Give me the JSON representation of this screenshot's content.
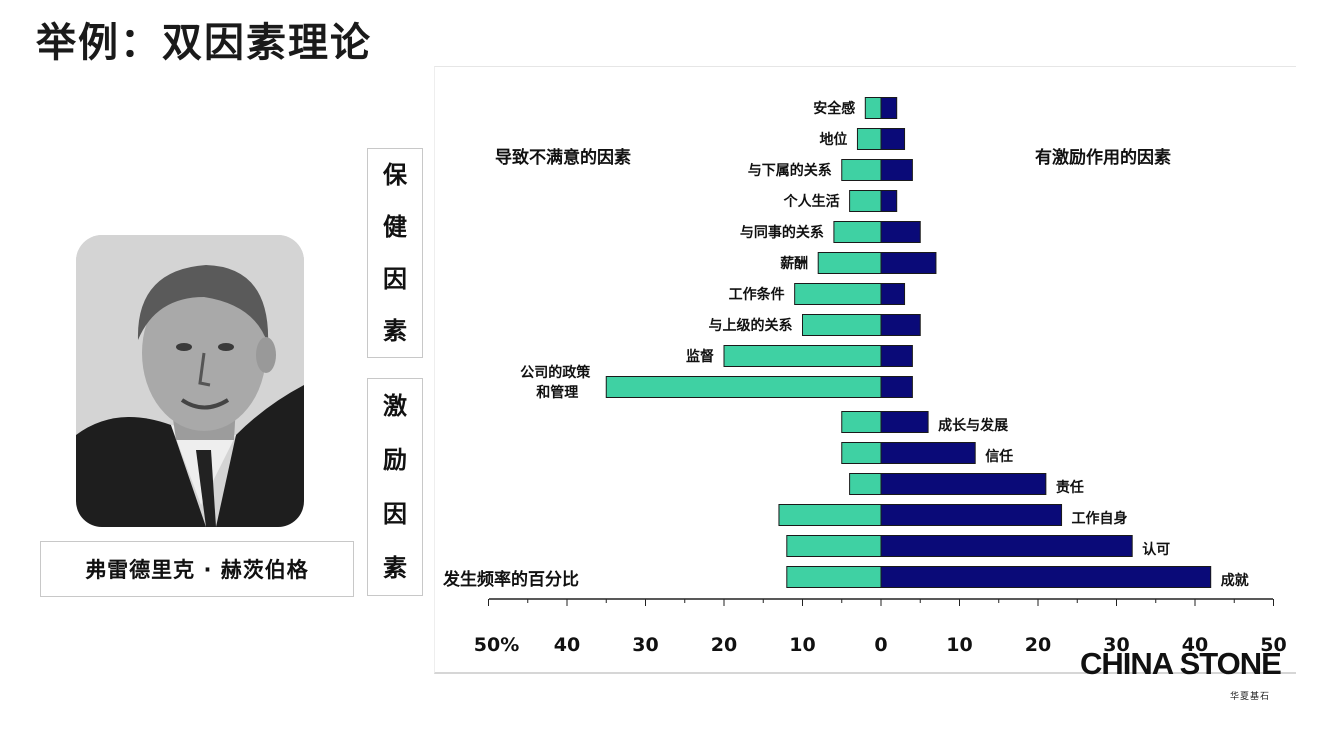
{
  "slide": {
    "title": "举例：双因素理论",
    "person_name": "弗雷德里克 · 赫茨伯格",
    "hygiene_box": [
      "保",
      "健",
      "因",
      "素"
    ],
    "motivator_box": [
      "激",
      "励",
      "因",
      "素"
    ],
    "logo_text": "CHINA STONE",
    "logo_sub": "华夏基石"
  },
  "chart_data": {
    "type": "bar",
    "orientation": "horizontal-diverging",
    "left_header": "导致不满意的因素",
    "right_header": "有激励作用的因素",
    "xlabel": "发生频率的百分比",
    "x_ticks_left": [
      "50%",
      "40",
      "30",
      "20",
      "10"
    ],
    "x_ticks_right": [
      "0",
      "10",
      "20",
      "30",
      "40",
      "50"
    ],
    "xlim": [
      -50,
      50
    ],
    "colors": {
      "dissatisfier": "#3fd1a3",
      "motivator": "#0a0a78"
    },
    "factors": [
      {
        "label": "安全感",
        "group": "hygiene",
        "dissatisfier": 2,
        "motivator": 2
      },
      {
        "label": "地位",
        "group": "hygiene",
        "dissatisfier": 3,
        "motivator": 3
      },
      {
        "label": "与下属的关系",
        "group": "hygiene",
        "dissatisfier": 5,
        "motivator": 4
      },
      {
        "label": "个人生活",
        "group": "hygiene",
        "dissatisfier": 4,
        "motivator": 2
      },
      {
        "label": "与同事的关系",
        "group": "hygiene",
        "dissatisfier": 6,
        "motivator": 5
      },
      {
        "label": "薪酬",
        "group": "hygiene",
        "dissatisfier": 8,
        "motivator": 7
      },
      {
        "label": "工作条件",
        "group": "hygiene",
        "dissatisfier": 11,
        "motivator": 3
      },
      {
        "label": "与上级的关系",
        "group": "hygiene",
        "dissatisfier": 10,
        "motivator": 5
      },
      {
        "label": "监督",
        "group": "hygiene",
        "dissatisfier": 20,
        "motivator": 4
      },
      {
        "label": "公司的政策\n和管理",
        "group": "hygiene",
        "dissatisfier": 35,
        "motivator": 4
      },
      {
        "label": "成长与发展",
        "group": "motivator",
        "dissatisfier": 5,
        "motivator": 6
      },
      {
        "label": "信任",
        "group": "motivator",
        "dissatisfier": 5,
        "motivator": 12
      },
      {
        "label": "责任",
        "group": "motivator",
        "dissatisfier": 4,
        "motivator": 21
      },
      {
        "label": "工作自身",
        "group": "motivator",
        "dissatisfier": 13,
        "motivator": 23
      },
      {
        "label": "认可",
        "group": "motivator",
        "dissatisfier": 12,
        "motivator": 32
      },
      {
        "label": "成就",
        "group": "motivator",
        "dissatisfier": 12,
        "motivator": 42
      }
    ]
  }
}
